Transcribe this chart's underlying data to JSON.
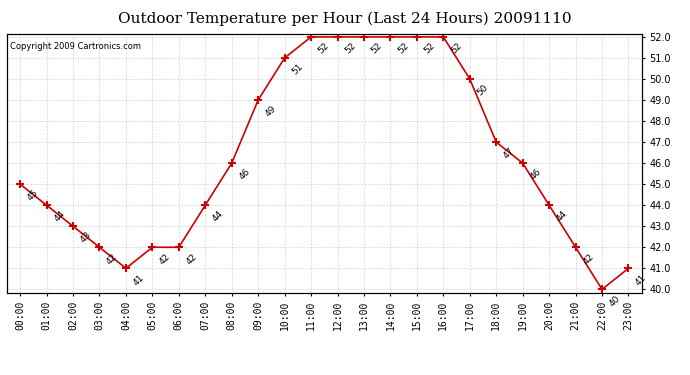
{
  "title": "Outdoor Temperature per Hour (Last 24 Hours) 20091110",
  "copyright": "Copyright 2009 Cartronics.com",
  "hours": [
    "00:00",
    "01:00",
    "02:00",
    "03:00",
    "04:00",
    "05:00",
    "06:00",
    "07:00",
    "08:00",
    "09:00",
    "10:00",
    "11:00",
    "12:00",
    "13:00",
    "14:00",
    "15:00",
    "16:00",
    "17:00",
    "18:00",
    "19:00",
    "20:00",
    "21:00",
    "22:00",
    "23:00"
  ],
  "temps": [
    45,
    44,
    43,
    42,
    41,
    42,
    42,
    44,
    46,
    49,
    51,
    52,
    52,
    52,
    52,
    52,
    52,
    50,
    47,
    46,
    44,
    42,
    40,
    41
  ],
  "ylim_min": 40.0,
  "ylim_max": 52.0,
  "yticks": [
    40.0,
    41.0,
    42.0,
    43.0,
    44.0,
    45.0,
    46.0,
    47.0,
    48.0,
    49.0,
    50.0,
    51.0,
    52.0
  ],
  "line_color": "#cc0000",
  "marker": "+",
  "marker_size": 6,
  "bg_color": "#ffffff",
  "grid_color": "#cccccc",
  "title_fontsize": 11,
  "copyright_fontsize": 6,
  "tick_fontsize": 7,
  "annot_fontsize": 6.5
}
